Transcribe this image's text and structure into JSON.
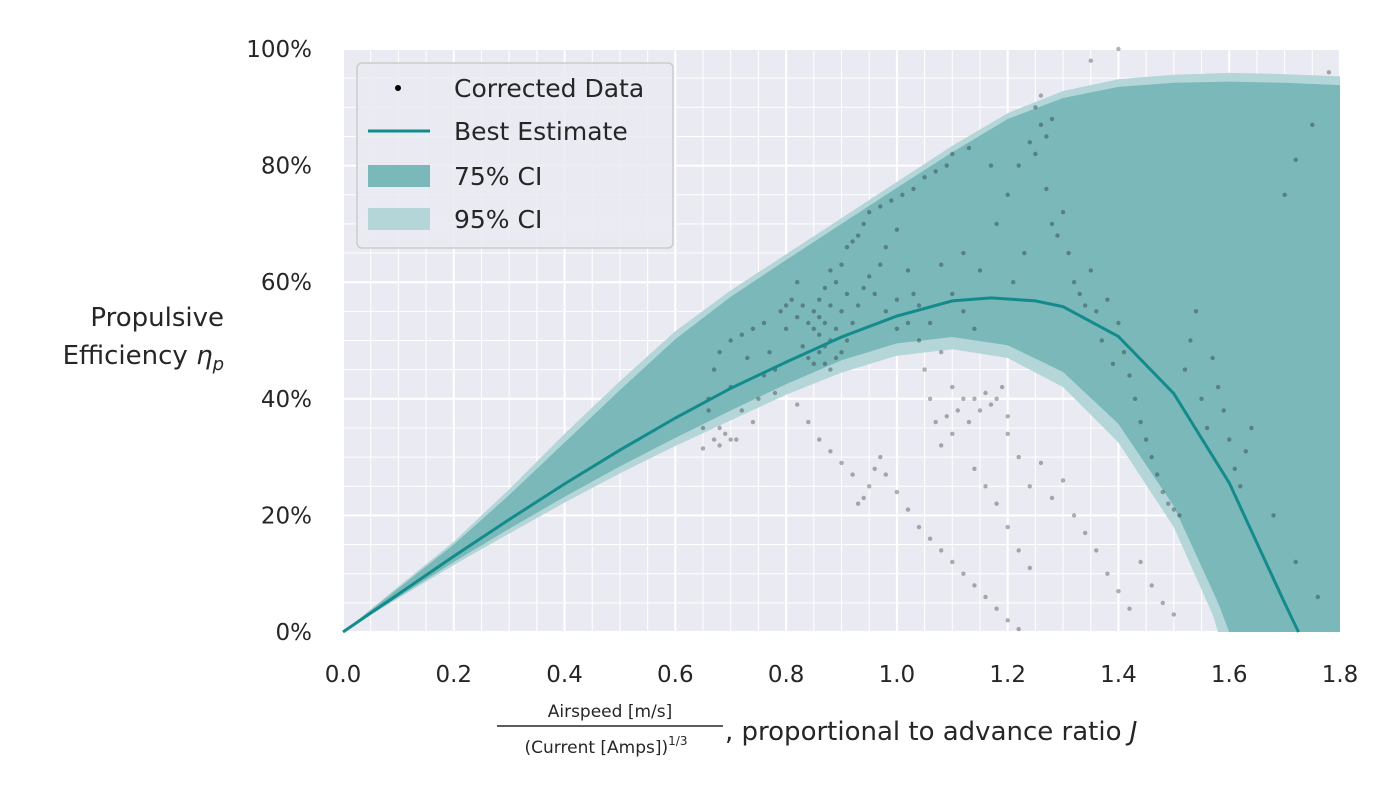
{
  "chart_data": {
    "type": "scatter",
    "x_axis": {
      "range": [
        0,
        1.8
      ],
      "ticks": [
        "0.0",
        "0.2",
        "0.4",
        "0.6",
        "0.8",
        "1.0",
        "1.2",
        "1.4",
        "1.6",
        "1.8"
      ],
      "label_numerator": "Airspeed [m/s]",
      "label_denominator": "(Current [Amps])",
      "label_denominator_exponent": "1/3",
      "label_suffix": ", proportional to advance ratio ",
      "label_symbol": "J"
    },
    "y_axis": {
      "range": [
        0,
        100
      ],
      "unit": "%",
      "ticks": [
        "0%",
        "20%",
        "40%",
        "60%",
        "80%",
        "100%"
      ],
      "label_line1": "Propulsive",
      "label_line2": "Efficiency ",
      "label_symbol": "η",
      "label_subscript": "p"
    },
    "grid": true,
    "legend": {
      "placement": "top-left",
      "entries": [
        {
          "label": "Corrected Data",
          "kind": "marker"
        },
        {
          "label": "Best Estimate",
          "kind": "line"
        },
        {
          "label": "75% CI",
          "kind": "band-dark"
        },
        {
          "label": "95% CI",
          "kind": "band-light"
        }
      ]
    },
    "colors": {
      "best_estimate": "#148b8b",
      "ci75": "#7bb8ba",
      "ci95": "#b4d6d8",
      "points": "#000000",
      "background": "#eaeaf2",
      "grid": "#ffffff"
    },
    "best_estimate": [
      [
        0.0,
        0
      ],
      [
        0.1,
        6.5
      ],
      [
        0.2,
        13
      ],
      [
        0.3,
        19.3
      ],
      [
        0.4,
        25.4
      ],
      [
        0.5,
        31.2
      ],
      [
        0.6,
        36.7
      ],
      [
        0.7,
        41.8
      ],
      [
        0.8,
        46.3
      ],
      [
        0.9,
        50.6
      ],
      [
        1.0,
        54.2
      ],
      [
        1.1,
        56.8
      ],
      [
        1.17,
        57.3
      ],
      [
        1.25,
        56.8
      ],
      [
        1.3,
        55.8
      ],
      [
        1.4,
        50.7
      ],
      [
        1.5,
        40.9
      ],
      [
        1.6,
        25.6
      ],
      [
        1.7,
        5.0
      ],
      [
        1.725,
        0
      ]
    ],
    "ci75_upper": [
      [
        0.0,
        0
      ],
      [
        0.1,
        7.5
      ],
      [
        0.2,
        15
      ],
      [
        0.3,
        23.5
      ],
      [
        0.4,
        32.5
      ],
      [
        0.5,
        41.5
      ],
      [
        0.6,
        50.2
      ],
      [
        0.7,
        57.5
      ],
      [
        0.8,
        63.8
      ],
      [
        0.9,
        70.0
      ],
      [
        1.0,
        76.2
      ],
      [
        1.1,
        82.3
      ],
      [
        1.2,
        88.0
      ],
      [
        1.3,
        91.6
      ],
      [
        1.4,
        93.5
      ],
      [
        1.5,
        94.2
      ],
      [
        1.6,
        94.4
      ],
      [
        1.7,
        94.2
      ],
      [
        1.8,
        93.8
      ]
    ],
    "ci75_lower": [
      [
        0.0,
        0
      ],
      [
        0.1,
        6
      ],
      [
        0.2,
        12
      ],
      [
        0.3,
        17.7
      ],
      [
        0.4,
        23.2
      ],
      [
        0.5,
        28.4
      ],
      [
        0.6,
        33.3
      ],
      [
        0.7,
        38.0
      ],
      [
        0.8,
        42.5
      ],
      [
        0.9,
        46.6
      ],
      [
        1.0,
        49.5
      ],
      [
        1.1,
        50.6
      ],
      [
        1.2,
        49.2
      ],
      [
        1.3,
        44.6
      ],
      [
        1.4,
        35.7
      ],
      [
        1.5,
        21.6
      ],
      [
        1.58,
        5.0
      ],
      [
        1.6,
        0
      ]
    ],
    "ci95_upper": [
      [
        0.0,
        0
      ],
      [
        0.1,
        7.8
      ],
      [
        0.2,
        15.5
      ],
      [
        0.3,
        24.5
      ],
      [
        0.4,
        34
      ],
      [
        0.5,
        43
      ],
      [
        0.6,
        51.6
      ],
      [
        0.7,
        58.6
      ],
      [
        0.8,
        64.8
      ],
      [
        0.9,
        71.0
      ],
      [
        1.0,
        77.2
      ],
      [
        1.1,
        83.4
      ],
      [
        1.2,
        89.0
      ],
      [
        1.3,
        92.8
      ],
      [
        1.4,
        94.8
      ],
      [
        1.5,
        95.6
      ],
      [
        1.6,
        95.9
      ],
      [
        1.7,
        95.7
      ],
      [
        1.8,
        95.3
      ]
    ],
    "ci95_lower": [
      [
        0.0,
        0
      ],
      [
        0.1,
        5.8
      ],
      [
        0.2,
        11.5
      ],
      [
        0.3,
        16.9
      ],
      [
        0.4,
        22.2
      ],
      [
        0.5,
        27.2
      ],
      [
        0.6,
        31.9
      ],
      [
        0.7,
        36.3
      ],
      [
        0.8,
        40.7
      ],
      [
        0.9,
        44.5
      ],
      [
        1.0,
        47.4
      ],
      [
        1.1,
        48.5
      ],
      [
        1.2,
        47.0
      ],
      [
        1.3,
        42.0
      ],
      [
        1.4,
        32.5
      ],
      [
        1.5,
        18.0
      ],
      [
        1.57,
        3.0
      ],
      [
        1.58,
        0
      ]
    ],
    "points": [
      [
        0.65,
        31.5
      ],
      [
        0.65,
        35
      ],
      [
        0.66,
        38
      ],
      [
        0.66,
        40
      ],
      [
        0.67,
        33
      ],
      [
        0.67,
        45
      ],
      [
        0.68,
        32
      ],
      [
        0.68,
        48
      ],
      [
        0.69,
        34
      ],
      [
        0.7,
        50
      ],
      [
        0.7,
        42
      ],
      [
        0.71,
        33
      ],
      [
        0.72,
        51
      ],
      [
        0.73,
        47
      ],
      [
        0.74,
        52
      ],
      [
        0.75,
        40
      ],
      [
        0.76,
        53
      ],
      [
        0.77,
        48
      ],
      [
        0.78,
        41
      ],
      [
        0.79,
        55
      ],
      [
        0.8,
        56
      ],
      [
        0.8,
        52
      ],
      [
        0.81,
        57
      ],
      [
        0.82,
        54
      ],
      [
        0.82,
        60
      ],
      [
        0.83,
        49
      ],
      [
        0.83,
        56
      ],
      [
        0.84,
        47
      ],
      [
        0.84,
        53
      ],
      [
        0.85,
        46
      ],
      [
        0.85,
        52
      ],
      [
        0.85,
        55
      ],
      [
        0.86,
        48
      ],
      [
        0.86,
        51
      ],
      [
        0.86,
        54
      ],
      [
        0.86,
        57
      ],
      [
        0.87,
        46
      ],
      [
        0.87,
        49
      ],
      [
        0.87,
        53
      ],
      [
        0.87,
        59
      ],
      [
        0.88,
        45
      ],
      [
        0.88,
        50
      ],
      [
        0.88,
        56
      ],
      [
        0.88,
        62
      ],
      [
        0.89,
        47
      ],
      [
        0.89,
        52
      ],
      [
        0.89,
        60
      ],
      [
        0.9,
        48
      ],
      [
        0.9,
        55
      ],
      [
        0.9,
        63
      ],
      [
        0.91,
        50
      ],
      [
        0.91,
        58
      ],
      [
        0.91,
        66
      ],
      [
        0.92,
        53
      ],
      [
        0.92,
        67
      ],
      [
        0.93,
        56
      ],
      [
        0.93,
        68
      ],
      [
        0.94,
        59
      ],
      [
        0.94,
        70
      ],
      [
        0.95,
        61
      ],
      [
        0.95,
        72
      ],
      [
        0.96,
        58
      ],
      [
        0.97,
        63
      ],
      [
        0.97,
        73
      ],
      [
        0.98,
        55
      ],
      [
        0.98,
        66
      ],
      [
        0.99,
        74
      ],
      [
        1.0,
        52
      ],
      [
        1.0,
        57
      ],
      [
        1.0,
        69
      ],
      [
        1.01,
        75
      ],
      [
        1.02,
        53
      ],
      [
        1.02,
        62
      ],
      [
        1.03,
        58
      ],
      [
        1.03,
        76
      ],
      [
        1.04,
        50
      ],
      [
        1.04,
        56
      ],
      [
        1.05,
        78
      ],
      [
        1.05,
        45
      ],
      [
        1.06,
        40
      ],
      [
        1.06,
        53
      ],
      [
        1.07,
        36
      ],
      [
        1.07,
        79
      ],
      [
        1.08,
        32
      ],
      [
        1.08,
        48
      ],
      [
        1.09,
        37
      ],
      [
        1.09,
        80
      ],
      [
        1.1,
        34
      ],
      [
        1.1,
        42
      ],
      [
        1.1,
        82
      ],
      [
        1.11,
        38
      ],
      [
        1.12,
        40
      ],
      [
        1.12,
        65
      ],
      [
        1.13,
        36
      ],
      [
        1.13,
        83
      ],
      [
        1.14,
        40
      ],
      [
        1.15,
        38
      ],
      [
        1.15,
        62
      ],
      [
        1.16,
        41
      ],
      [
        1.17,
        39
      ],
      [
        1.17,
        80
      ],
      [
        1.18,
        40
      ],
      [
        1.18,
        70
      ],
      [
        1.19,
        42
      ],
      [
        1.2,
        37
      ],
      [
        1.2,
        75
      ],
      [
        1.21,
        60
      ],
      [
        1.22,
        80
      ],
      [
        1.23,
        65
      ],
      [
        1.24,
        84
      ],
      [
        1.25,
        82
      ],
      [
        1.25,
        90
      ],
      [
        1.26,
        87
      ],
      [
        1.26,
        92
      ],
      [
        1.27,
        85
      ],
      [
        1.27,
        76
      ],
      [
        1.28,
        88
      ],
      [
        1.28,
        70
      ],
      [
        1.29,
        68
      ],
      [
        1.3,
        72
      ],
      [
        1.31,
        65
      ],
      [
        1.32,
        60
      ],
      [
        1.33,
        58
      ],
      [
        1.34,
        56
      ],
      [
        1.35,
        62
      ],
      [
        1.36,
        55
      ],
      [
        1.37,
        50
      ],
      [
        1.38,
        57
      ],
      [
        1.39,
        46
      ],
      [
        1.4,
        53
      ],
      [
        1.41,
        48
      ],
      [
        1.42,
        44
      ],
      [
        1.43,
        40
      ],
      [
        1.44,
        36
      ],
      [
        1.45,
        33
      ],
      [
        1.46,
        30
      ],
      [
        1.47,
        27
      ],
      [
        1.48,
        24
      ],
      [
        1.49,
        22
      ],
      [
        1.5,
        21
      ],
      [
        1.51,
        20
      ],
      [
        1.52,
        45
      ],
      [
        1.53,
        50
      ],
      [
        1.54,
        55
      ],
      [
        1.55,
        40
      ],
      [
        1.56,
        35
      ],
      [
        1.57,
        47
      ],
      [
        1.58,
        42
      ],
      [
        1.59,
        38
      ],
      [
        1.6,
        33
      ],
      [
        1.61,
        28
      ],
      [
        1.62,
        25
      ],
      [
        1.63,
        31
      ],
      [
        1.64,
        35
      ],
      [
        1.2,
        34
      ],
      [
        1.22,
        30
      ],
      [
        1.24,
        25
      ],
      [
        1.26,
        29
      ],
      [
        1.28,
        23
      ],
      [
        1.3,
        26
      ],
      [
        1.32,
        20
      ],
      [
        1.34,
        17
      ],
      [
        1.36,
        14
      ],
      [
        1.38,
        10
      ],
      [
        1.4,
        7
      ],
      [
        1.42,
        4
      ],
      [
        1.44,
        12
      ],
      [
        1.46,
        8
      ],
      [
        1.48,
        5
      ],
      [
        1.5,
        3
      ],
      [
        0.82,
        39
      ],
      [
        0.84,
        36
      ],
      [
        0.86,
        33
      ],
      [
        0.88,
        31
      ],
      [
        0.9,
        29
      ],
      [
        0.92,
        27
      ],
      [
        0.93,
        22
      ],
      [
        0.94,
        23
      ],
      [
        0.95,
        25
      ],
      [
        0.96,
        28
      ],
      [
        0.97,
        30
      ],
      [
        0.98,
        27
      ],
      [
        1.0,
        24
      ],
      [
        1.02,
        21
      ],
      [
        1.04,
        18
      ],
      [
        1.06,
        16
      ],
      [
        1.08,
        14
      ],
      [
        1.1,
        12
      ],
      [
        1.12,
        10
      ],
      [
        1.14,
        8
      ],
      [
        1.16,
        6
      ],
      [
        1.18,
        4
      ],
      [
        1.2,
        2
      ],
      [
        1.22,
        0.5
      ],
      [
        1.14,
        28
      ],
      [
        1.16,
        25
      ],
      [
        1.18,
        22
      ],
      [
        1.2,
        18
      ],
      [
        1.22,
        14
      ],
      [
        1.24,
        11
      ],
      [
        1.7,
        75
      ],
      [
        1.72,
        81
      ],
      [
        1.75,
        87
      ],
      [
        1.78,
        96
      ],
      [
        1.72,
        12
      ],
      [
        1.76,
        6
      ],
      [
        1.68,
        20
      ],
      [
        1.35,
        98
      ],
      [
        1.4,
        100
      ],
      [
        1.08,
        63
      ],
      [
        1.1,
        58
      ],
      [
        1.12,
        55
      ],
      [
        1.14,
        52
      ],
      [
        0.76,
        44
      ],
      [
        0.78,
        45
      ],
      [
        0.72,
        38
      ],
      [
        0.74,
        36
      ],
      [
        0.7,
        33
      ],
      [
        0.68,
        35
      ]
    ]
  }
}
